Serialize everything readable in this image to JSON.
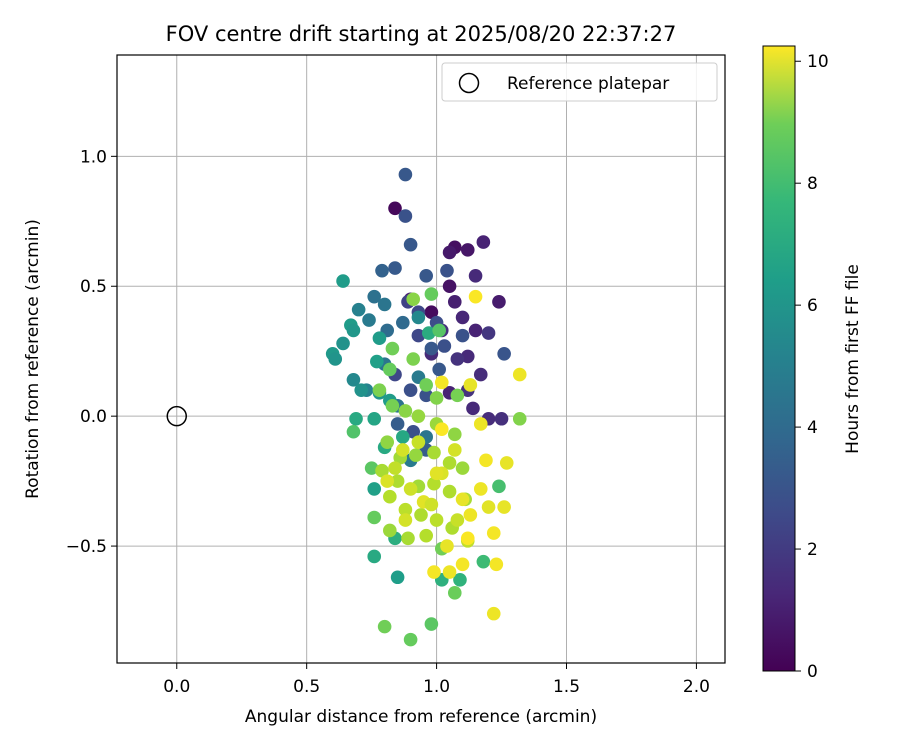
{
  "chart_data": {
    "type": "scatter",
    "title": "FOV centre drift starting at 2025/08/20 22:37:27",
    "xlabel": "Angular distance from reference (arcmin)",
    "ylabel": "Rotation from reference (arcmin)",
    "xlim": [
      -0.23,
      2.11
    ],
    "ylim": [
      -0.95,
      1.39
    ],
    "xticks": [
      0.0,
      0.5,
      1.0,
      1.5,
      2.0
    ],
    "xtick_labels": [
      "0.0",
      "0.5",
      "1.0",
      "1.5",
      "2.0"
    ],
    "yticks": [
      -0.5,
      0.0,
      0.5,
      1.0
    ],
    "ytick_labels": [
      "−0.5",
      "0.0",
      "0.5",
      "1.0"
    ],
    "grid": true,
    "legend": {
      "position": "top-right",
      "entries": [
        {
          "label": "Reference platepar",
          "marker": "open-circle"
        }
      ]
    },
    "reference_point": {
      "x": 0.0,
      "y": 0.0
    },
    "colorbar": {
      "label": "Hours from first FF file",
      "colormap": "viridis",
      "range": [
        0,
        10.25
      ],
      "ticks": [
        0,
        2,
        4,
        6,
        8,
        10
      ],
      "tick_labels": [
        "0",
        "2",
        "4",
        "6",
        "8",
        "10"
      ]
    },
    "points": [
      {
        "x": 0.84,
        "y": 0.8,
        "h": 0.2
      },
      {
        "x": 1.07,
        "y": 0.65,
        "h": 0.4
      },
      {
        "x": 1.12,
        "y": 0.64,
        "h": 0.6
      },
      {
        "x": 1.05,
        "y": 0.63,
        "h": 0.7
      },
      {
        "x": 1.18,
        "y": 0.67,
        "h": 1.0
      },
      {
        "x": 1.15,
        "y": 0.54,
        "h": 1.2
      },
      {
        "x": 1.05,
        "y": 0.5,
        "h": 0.5
      },
      {
        "x": 1.24,
        "y": 0.44,
        "h": 0.8
      },
      {
        "x": 1.07,
        "y": 0.44,
        "h": 0.9
      },
      {
        "x": 0.98,
        "y": 0.4,
        "h": 0.3
      },
      {
        "x": 1.1,
        "y": 0.38,
        "h": 1.1
      },
      {
        "x": 1.02,
        "y": 0.33,
        "h": 1.4
      },
      {
        "x": 1.15,
        "y": 0.33,
        "h": 1.0
      },
      {
        "x": 1.12,
        "y": 0.23,
        "h": 1.2
      },
      {
        "x": 1.08,
        "y": 0.22,
        "h": 1.5
      },
      {
        "x": 1.2,
        "y": 0.32,
        "h": 1.6
      },
      {
        "x": 1.17,
        "y": 0.16,
        "h": 1.3
      },
      {
        "x": 1.12,
        "y": 0.1,
        "h": 1.5
      },
      {
        "x": 1.05,
        "y": 0.09,
        "h": 1.0
      },
      {
        "x": 1.2,
        "y": -0.01,
        "h": 1.3
      },
      {
        "x": 1.14,
        "y": 0.03,
        "h": 1.2
      },
      {
        "x": 1.25,
        "y": -0.01,
        "h": 1.4
      },
      {
        "x": 0.9,
        "y": 0.45,
        "h": 1.0
      },
      {
        "x": 0.98,
        "y": 0.24,
        "h": 1.2
      },
      {
        "x": 0.88,
        "y": 0.93,
        "h": 2.8
      },
      {
        "x": 0.88,
        "y": 0.77,
        "h": 2.6
      },
      {
        "x": 0.9,
        "y": 0.66,
        "h": 2.8
      },
      {
        "x": 0.84,
        "y": 0.57,
        "h": 2.9
      },
      {
        "x": 0.96,
        "y": 0.54,
        "h": 2.8
      },
      {
        "x": 1.04,
        "y": 0.56,
        "h": 2.6
      },
      {
        "x": 0.89,
        "y": 0.44,
        "h": 2.0
      },
      {
        "x": 0.93,
        "y": 0.4,
        "h": 2.2
      },
      {
        "x": 1.0,
        "y": 0.36,
        "h": 2.4
      },
      {
        "x": 0.93,
        "y": 0.31,
        "h": 2.2
      },
      {
        "x": 0.98,
        "y": 0.26,
        "h": 2.8
      },
      {
        "x": 1.03,
        "y": 0.27,
        "h": 2.5
      },
      {
        "x": 1.1,
        "y": 0.31,
        "h": 2.6
      },
      {
        "x": 1.26,
        "y": 0.24,
        "h": 2.7
      },
      {
        "x": 0.84,
        "y": 0.16,
        "h": 2.2
      },
      {
        "x": 0.9,
        "y": 0.1,
        "h": 2.5
      },
      {
        "x": 0.96,
        "y": 0.08,
        "h": 2.6
      },
      {
        "x": 0.85,
        "y": -0.03,
        "h": 3.0
      },
      {
        "x": 0.91,
        "y": -0.06,
        "h": 2.5
      },
      {
        "x": 0.96,
        "y": -0.13,
        "h": 3.0
      },
      {
        "x": 1.01,
        "y": 0.18,
        "h": 2.8
      },
      {
        "x": 0.79,
        "y": 0.56,
        "h": 3.2
      },
      {
        "x": 0.76,
        "y": 0.46,
        "h": 3.8
      },
      {
        "x": 0.8,
        "y": 0.43,
        "h": 4.0
      },
      {
        "x": 0.74,
        "y": 0.37,
        "h": 4.2
      },
      {
        "x": 0.81,
        "y": 0.33,
        "h": 3.6
      },
      {
        "x": 0.87,
        "y": 0.36,
        "h": 3.5
      },
      {
        "x": 0.8,
        "y": 0.2,
        "h": 4.0
      },
      {
        "x": 0.93,
        "y": 0.15,
        "h": 4.2
      },
      {
        "x": 0.85,
        "y": 0.04,
        "h": 3.9
      },
      {
        "x": 0.7,
        "y": 0.41,
        "h": 4.5
      },
      {
        "x": 0.73,
        "y": 0.1,
        "h": 4.6
      },
      {
        "x": 0.68,
        "y": 0.14,
        "h": 4.8
      },
      {
        "x": 0.93,
        "y": 0.38,
        "h": 4.8
      },
      {
        "x": 0.96,
        "y": -0.08,
        "h": 4.0
      },
      {
        "x": 0.9,
        "y": -0.17,
        "h": 4.2
      },
      {
        "x": 0.64,
        "y": 0.52,
        "h": 5.6
      },
      {
        "x": 0.6,
        "y": 0.24,
        "h": 5.5
      },
      {
        "x": 0.61,
        "y": 0.22,
        "h": 5.3
      },
      {
        "x": 0.64,
        "y": 0.28,
        "h": 5.2
      },
      {
        "x": 0.67,
        "y": 0.35,
        "h": 5.6
      },
      {
        "x": 0.68,
        "y": 0.33,
        "h": 5.4
      },
      {
        "x": 0.71,
        "y": 0.1,
        "h": 5.2
      },
      {
        "x": 0.78,
        "y": 0.3,
        "h": 5.6
      },
      {
        "x": 0.77,
        "y": 0.21,
        "h": 5.8
      },
      {
        "x": 0.78,
        "y": 0.09,
        "h": 5.4
      },
      {
        "x": 0.69,
        "y": -0.01,
        "h": 6.2
      },
      {
        "x": 0.76,
        "y": -0.01,
        "h": 6.0
      },
      {
        "x": 0.82,
        "y": 0.06,
        "h": 5.6
      },
      {
        "x": 0.76,
        "y": -0.28,
        "h": 5.8
      },
      {
        "x": 0.85,
        "y": -0.62,
        "h": 5.7
      },
      {
        "x": 0.76,
        "y": -0.54,
        "h": 6.2
      },
      {
        "x": 0.84,
        "y": -0.47,
        "h": 6.4
      },
      {
        "x": 0.8,
        "y": -0.12,
        "h": 6.2
      },
      {
        "x": 0.87,
        "y": -0.08,
        "h": 6.1
      },
      {
        "x": 1.02,
        "y": -0.63,
        "h": 6.5
      },
      {
        "x": 1.09,
        "y": -0.63,
        "h": 6.6
      },
      {
        "x": 1.18,
        "y": -0.56,
        "h": 7.0
      },
      {
        "x": 1.24,
        "y": -0.27,
        "h": 7.2
      },
      {
        "x": 0.97,
        "y": 0.32,
        "h": 6.3
      },
      {
        "x": 0.68,
        "y": -0.06,
        "h": 7.4
      },
      {
        "x": 0.75,
        "y": -0.2,
        "h": 7.6
      },
      {
        "x": 0.76,
        "y": -0.39,
        "h": 7.8
      },
      {
        "x": 0.8,
        "y": -0.81,
        "h": 8.0
      },
      {
        "x": 0.9,
        "y": -0.86,
        "h": 7.8
      },
      {
        "x": 0.98,
        "y": -0.8,
        "h": 7.6
      },
      {
        "x": 1.07,
        "y": -0.68,
        "h": 7.9
      },
      {
        "x": 1.02,
        "y": -0.51,
        "h": 8.0
      },
      {
        "x": 0.98,
        "y": 0.47,
        "h": 7.8
      },
      {
        "x": 0.91,
        "y": 0.45,
        "h": 8.4
      },
      {
        "x": 0.83,
        "y": 0.26,
        "h": 8.0
      },
      {
        "x": 0.91,
        "y": 0.22,
        "h": 8.2
      },
      {
        "x": 0.82,
        "y": 0.18,
        "h": 7.8
      },
      {
        "x": 0.78,
        "y": 0.1,
        "h": 8.2
      },
      {
        "x": 1.01,
        "y": 0.33,
        "h": 7.5
      },
      {
        "x": 1.32,
        "y": -0.01,
        "h": 8.3
      },
      {
        "x": 1.08,
        "y": 0.08,
        "h": 8.1
      },
      {
        "x": 1.0,
        "y": 0.07,
        "h": 8.3
      },
      {
        "x": 0.96,
        "y": 0.12,
        "h": 8.0
      },
      {
        "x": 0.83,
        "y": 0.04,
        "h": 8.1
      },
      {
        "x": 0.88,
        "y": 0.02,
        "h": 8.4
      },
      {
        "x": 0.93,
        "y": 0.0,
        "h": 8.6
      },
      {
        "x": 1.0,
        "y": -0.03,
        "h": 8.7
      },
      {
        "x": 1.07,
        "y": -0.07,
        "h": 8.5
      },
      {
        "x": 0.81,
        "y": -0.1,
        "h": 8.5
      },
      {
        "x": 0.86,
        "y": -0.16,
        "h": 8.8
      },
      {
        "x": 0.92,
        "y": -0.15,
        "h": 8.6
      },
      {
        "x": 0.99,
        "y": -0.14,
        "h": 8.9
      },
      {
        "x": 1.05,
        "y": -0.18,
        "h": 9.0
      },
      {
        "x": 1.1,
        "y": -0.2,
        "h": 8.7
      },
      {
        "x": 0.79,
        "y": -0.21,
        "h": 8.9
      },
      {
        "x": 0.85,
        "y": -0.25,
        "h": 9.0
      },
      {
        "x": 0.93,
        "y": -0.27,
        "h": 8.8
      },
      {
        "x": 0.99,
        "y": -0.26,
        "h": 9.1
      },
      {
        "x": 1.05,
        "y": -0.29,
        "h": 9.0
      },
      {
        "x": 1.11,
        "y": -0.32,
        "h": 8.9
      },
      {
        "x": 0.82,
        "y": -0.31,
        "h": 9.1
      },
      {
        "x": 0.88,
        "y": -0.36,
        "h": 9.2
      },
      {
        "x": 0.94,
        "y": -0.38,
        "h": 9.0
      },
      {
        "x": 1.0,
        "y": -0.4,
        "h": 9.2
      },
      {
        "x": 1.06,
        "y": -0.43,
        "h": 9.0
      },
      {
        "x": 0.82,
        "y": -0.44,
        "h": 8.7
      },
      {
        "x": 0.89,
        "y": -0.47,
        "h": 8.9
      },
      {
        "x": 0.96,
        "y": -0.46,
        "h": 9.1
      },
      {
        "x": 1.12,
        "y": -0.48,
        "h": 9.3
      },
      {
        "x": 0.88,
        "y": -0.4,
        "h": 9.6
      },
      {
        "x": 0.95,
        "y": -0.33,
        "h": 9.8
      },
      {
        "x": 1.02,
        "y": -0.22,
        "h": 9.7
      },
      {
        "x": 1.1,
        "y": -0.32,
        "h": 9.9
      },
      {
        "x": 1.17,
        "y": -0.28,
        "h": 10.0
      },
      {
        "x": 1.2,
        "y": -0.35,
        "h": 9.8
      },
      {
        "x": 1.26,
        "y": -0.35,
        "h": 9.9
      },
      {
        "x": 1.22,
        "y": -0.45,
        "h": 10.1
      },
      {
        "x": 1.13,
        "y": -0.38,
        "h": 10.0
      },
      {
        "x": 1.04,
        "y": -0.5,
        "h": 9.9
      },
      {
        "x": 0.99,
        "y": -0.6,
        "h": 10.1
      },
      {
        "x": 1.05,
        "y": -0.6,
        "h": 10.0
      },
      {
        "x": 1.1,
        "y": -0.57,
        "h": 10.1
      },
      {
        "x": 1.12,
        "y": -0.47,
        "h": 10.2
      },
      {
        "x": 1.23,
        "y": -0.57,
        "h": 10.1
      },
      {
        "x": 1.22,
        "y": -0.76,
        "h": 10.0
      },
      {
        "x": 1.27,
        "y": -0.18,
        "h": 9.9
      },
      {
        "x": 1.19,
        "y": -0.17,
        "h": 10.1
      },
      {
        "x": 1.17,
        "y": -0.03,
        "h": 10.0
      },
      {
        "x": 1.02,
        "y": -0.05,
        "h": 10.2
      },
      {
        "x": 1.0,
        "y": -0.22,
        "h": 9.8
      },
      {
        "x": 1.15,
        "y": 0.46,
        "h": 10.2
      },
      {
        "x": 1.02,
        "y": 0.13,
        "h": 10.1
      },
      {
        "x": 1.13,
        "y": 0.12,
        "h": 9.9
      },
      {
        "x": 1.32,
        "y": 0.16,
        "h": 10.0
      },
      {
        "x": 0.87,
        "y": -0.13,
        "h": 9.6
      },
      {
        "x": 0.93,
        "y": -0.1,
        "h": 9.4
      },
      {
        "x": 0.84,
        "y": -0.2,
        "h": 9.3
      },
      {
        "x": 0.98,
        "y": -0.34,
        "h": 9.5
      },
      {
        "x": 1.08,
        "y": -0.4,
        "h": 9.4
      },
      {
        "x": 0.81,
        "y": -0.25,
        "h": 9.7
      },
      {
        "x": 0.9,
        "y": -0.28,
        "h": 9.5
      },
      {
        "x": 1.07,
        "y": -0.13,
        "h": 9.6
      }
    ]
  }
}
